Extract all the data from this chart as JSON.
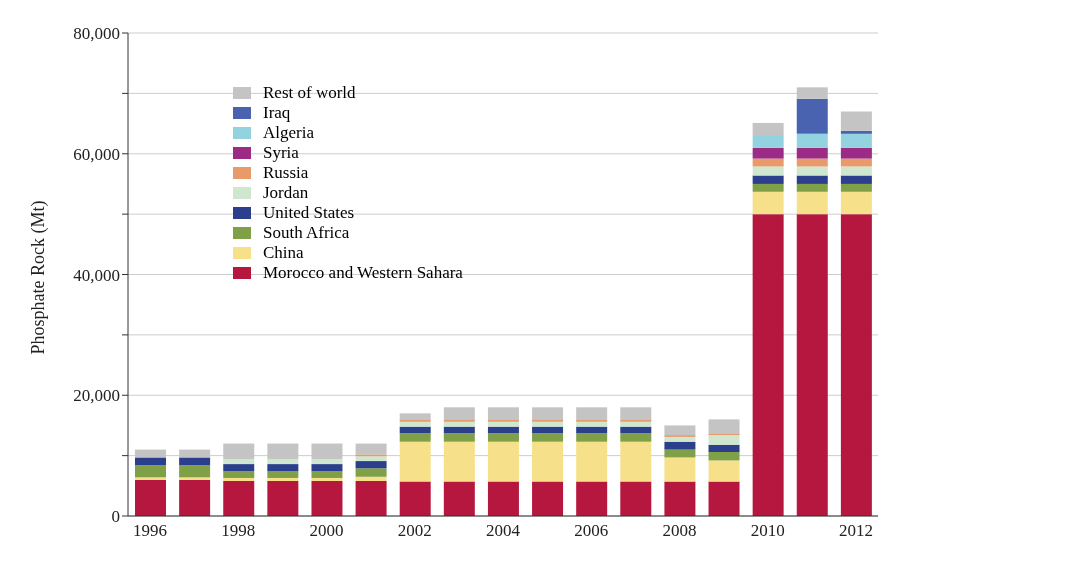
{
  "chart_data": {
    "type": "bar",
    "stacked": true,
    "ylabel": "Phosphate Rock (Mt)",
    "categories": [
      "1996",
      null,
      "1998",
      null,
      "2000",
      null,
      "2002",
      null,
      "2004",
      null,
      "2006",
      null,
      "2008",
      null,
      "2010",
      null,
      "2012"
    ],
    "series": [
      {
        "name": "Morocco and Western Sahara",
        "color": "#b5173f",
        "values": [
          6000,
          6000,
          5800,
          5800,
          5800,
          5800,
          5700,
          5700,
          5700,
          5700,
          5700,
          5700,
          5700,
          5700,
          50000,
          50000,
          50000
        ]
      },
      {
        "name": "China",
        "color": "#f7e08a",
        "values": [
          400,
          400,
          500,
          500,
          500,
          700,
          6600,
          6600,
          6600,
          6600,
          6600,
          6600,
          4000,
          3500,
          3700,
          3700,
          3700
        ]
      },
      {
        "name": "South Africa",
        "color": "#7fa047",
        "values": [
          2000,
          2000,
          1100,
          1100,
          1100,
          1400,
          1400,
          1400,
          1400,
          1400,
          1400,
          1400,
          1300,
          1400,
          1300,
          1300,
          1300
        ]
      },
      {
        "name": "United States",
        "color": "#2b3f8c",
        "values": [
          1300,
          1300,
          1200,
          1200,
          1200,
          1200,
          1100,
          1100,
          1100,
          1100,
          1100,
          1100,
          1300,
          1200,
          1400,
          1400,
          1400
        ]
      },
      {
        "name": "Jordan",
        "color": "#cfe6cf",
        "values": [
          0,
          0,
          800,
          800,
          800,
          800,
          800,
          800,
          800,
          800,
          800,
          800,
          800,
          1600,
          1500,
          1500,
          1500
        ]
      },
      {
        "name": "Russia",
        "color": "#e89a6a",
        "values": [
          0,
          0,
          0,
          0,
          0,
          300,
          300,
          300,
          300,
          300,
          300,
          300,
          300,
          300,
          1300,
          1300,
          1300
        ]
      },
      {
        "name": "Syria",
        "color": "#9b2b85",
        "values": [
          0,
          0,
          0,
          0,
          0,
          0,
          0,
          0,
          0,
          0,
          0,
          0,
          0,
          0,
          1800,
          1800,
          1800
        ]
      },
      {
        "name": "Algeria",
        "color": "#93d3e0",
        "values": [
          0,
          0,
          0,
          0,
          0,
          0,
          0,
          0,
          0,
          0,
          0,
          0,
          0,
          0,
          2100,
          2300,
          2300
        ]
      },
      {
        "name": "Iraq",
        "color": "#4a63b0",
        "values": [
          0,
          0,
          0,
          0,
          0,
          0,
          0,
          0,
          0,
          0,
          0,
          0,
          0,
          0,
          0,
          5800,
          500
        ]
      },
      {
        "name": "Rest of world",
        "color": "#c4c4c4",
        "values": [
          1300,
          1300,
          2600,
          2600,
          2600,
          1800,
          1100,
          2100,
          2100,
          2100,
          2100,
          2100,
          1600,
          2300,
          2000,
          1900,
          3200
        ]
      }
    ],
    "ylim": [
      0,
      80000
    ],
    "yticks": [
      0,
      {
        "value": 10000,
        "label": null
      },
      {
        "value": 20000,
        "label": "20,000"
      },
      {
        "value": 30000,
        "label": null
      },
      {
        "value": 40000,
        "label": "40,000"
      },
      {
        "value": 50000,
        "label": null
      },
      {
        "value": 60000,
        "label": "60,000"
      },
      {
        "value": 70000,
        "label": null
      },
      {
        "value": 80000,
        "label": "80,000"
      }
    ],
    "grid": "y",
    "legend": "top left"
  }
}
